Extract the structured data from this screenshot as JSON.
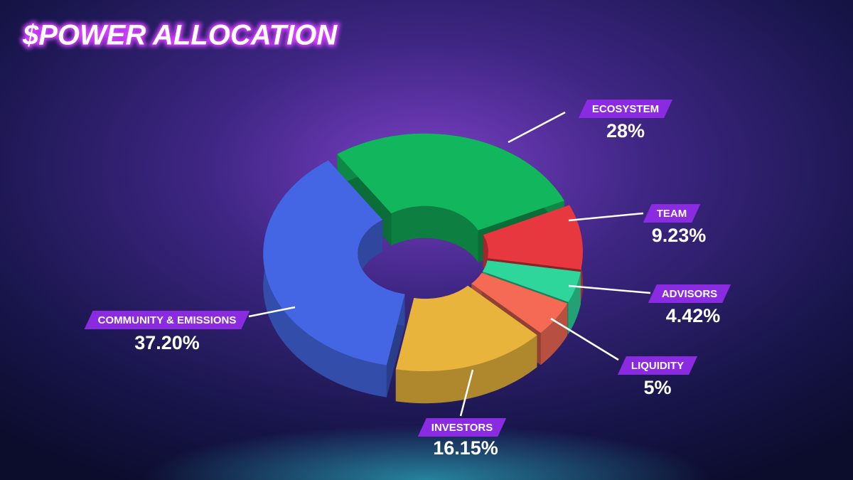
{
  "chart_data": {
    "type": "pie",
    "title": "$POWER ALLOCATION",
    "categories": [
      "ECOSYSTEM",
      "TEAM",
      "ADVISORS",
      "LIQUIDITY",
      "INVESTORS",
      "COMMUNITY & EMISSIONS"
    ],
    "values": [
      28,
      9.23,
      4.42,
      5,
      16.15,
      37.2
    ],
    "value_labels": [
      "28%",
      "9.23%",
      "4.42%",
      "5%",
      "16.15%",
      "37.20%"
    ],
    "colors": [
      "#12b65c",
      "#e8383f",
      "#2fd69c",
      "#f46a55",
      "#e9b43c",
      "#4466e4"
    ]
  }
}
